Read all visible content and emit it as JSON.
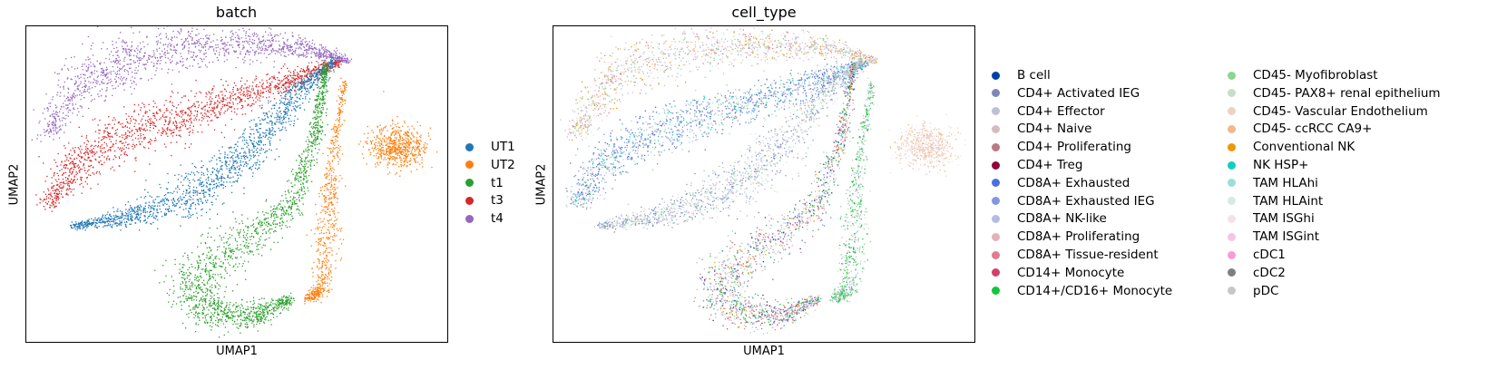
{
  "chart_data": [
    {
      "type": "scatter",
      "title": "batch",
      "xlabel": "UMAP1",
      "ylabel": "UMAP2",
      "grid": false,
      "legend_placement": "right",
      "series": [
        {
          "name": "UT1",
          "color": "#1f77b4"
        },
        {
          "name": "UT2",
          "color": "#ff7f0e"
        },
        {
          "name": "t1",
          "color": "#2ca02c"
        },
        {
          "name": "t3",
          "color": "#d62728"
        },
        {
          "name": "t4",
          "color": "#9467bd"
        }
      ]
    },
    {
      "type": "scatter",
      "title": "cell_type",
      "xlabel": "UMAP1",
      "ylabel": "UMAP2",
      "grid": false,
      "legend_placement": "right",
      "series": [
        {
          "name": "B cell",
          "color": "#023fa5"
        },
        {
          "name": "CD4+ Activated IEG",
          "color": "#7d87b9"
        },
        {
          "name": "CD4+ Effector",
          "color": "#bec1d4"
        },
        {
          "name": "CD4+ Naive",
          "color": "#d6bcc0"
        },
        {
          "name": "CD4+ Proliferating",
          "color": "#bb7784"
        },
        {
          "name": "CD4+ Treg",
          "color": "#8e063b"
        },
        {
          "name": "CD8A+ Exhausted",
          "color": "#4a6fe3"
        },
        {
          "name": "CD8A+ Exhausted IEG",
          "color": "#8595e1"
        },
        {
          "name": "CD8A+ NK-like",
          "color": "#b5bbe3"
        },
        {
          "name": "CD8A+ Proliferating",
          "color": "#e6afb9"
        },
        {
          "name": "CD8A+ Tissue-resident",
          "color": "#e07b91"
        },
        {
          "name": "CD14+ Monocyte",
          "color": "#d33f6a"
        },
        {
          "name": "CD14+/CD16+ Monocyte",
          "color": "#11c638"
        },
        {
          "name": "CD45- Myofibroblast",
          "color": "#8dd593"
        },
        {
          "name": "CD45- PAX8+ renal epithelium",
          "color": "#c6dec7"
        },
        {
          "name": "CD45- Vascular Endothelium",
          "color": "#ead3c6"
        },
        {
          "name": "CD45- ccRCC CA9+",
          "color": "#f0b98d"
        },
        {
          "name": "Conventional NK",
          "color": "#ef9708"
        },
        {
          "name": "NK HSP+",
          "color": "#0fcfc0"
        },
        {
          "name": "TAM HLAhi",
          "color": "#9cded6"
        },
        {
          "name": "TAM HLAint",
          "color": "#d5eae7"
        },
        {
          "name": "TAM ISGhi",
          "color": "#f3e1eb"
        },
        {
          "name": "TAM ISGint",
          "color": "#f6c4e1"
        },
        {
          "name": "cDC1",
          "color": "#f79cd4"
        },
        {
          "name": "cDC2",
          "color": "#7f7f7f"
        },
        {
          "name": "pDC",
          "color": "#c7c7c7"
        }
      ]
    }
  ]
}
